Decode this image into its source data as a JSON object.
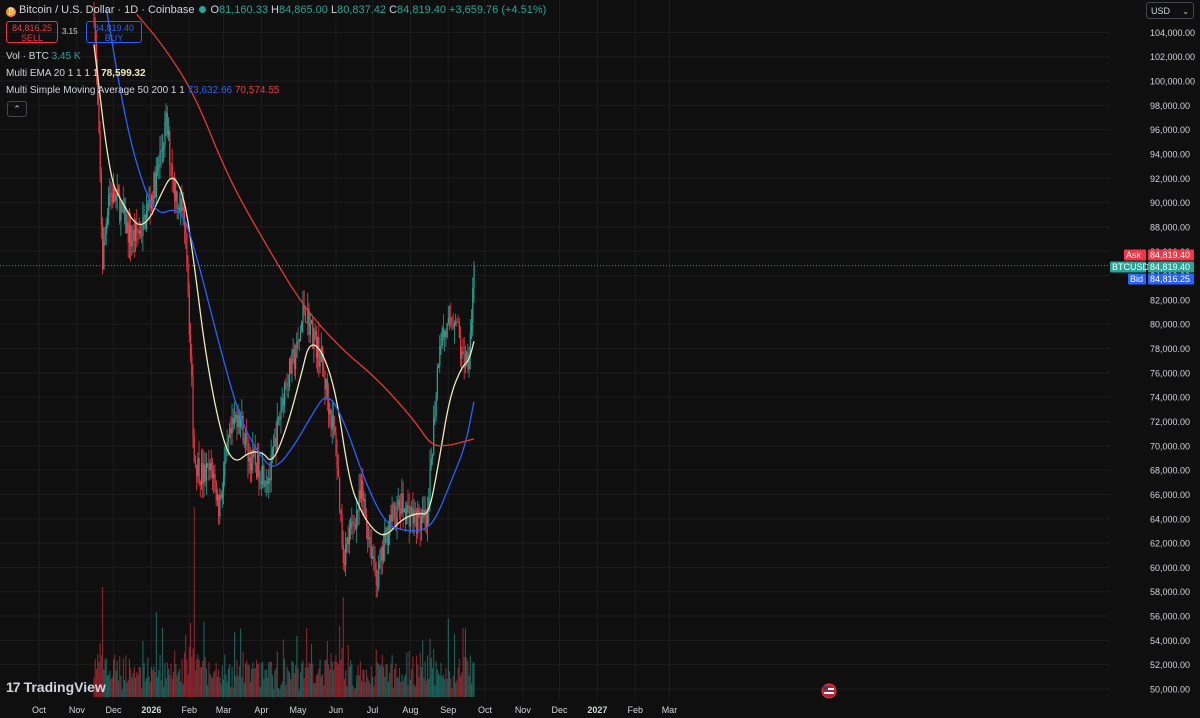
{
  "header": {
    "symbol_title": "Bitcoin / U.S. Dollar · 1D · Coinbase",
    "open_label": "O",
    "open": "81,160.33",
    "high_label": "H",
    "high": "84,865.00",
    "low_label": "L",
    "low": "80,837.42",
    "close_label": "C",
    "close": "84,819.40",
    "change": "+3,659.76 (+4.51%)"
  },
  "trade": {
    "sell_price": "84,816.25",
    "sell_label": "SELL",
    "spread": "3.15",
    "buy_price": "84,819.40",
    "buy_label": "BUY"
  },
  "indicators": {
    "vol_label": "Vol · BTC",
    "vol_value": "3.45 K",
    "ema_label": "Multi EMA 20 1 1 1 1",
    "ema_value": "78,599.32",
    "sma_label": "Multi Simple Moving Average 50 200 1 1",
    "sma50_value": "73,632.66",
    "sma200_value": "70,574.55",
    "collapse_icon": "chevron-up-icon"
  },
  "currency": {
    "label": "USD",
    "icon": "chevron-down-icon"
  },
  "branding": {
    "logo_text": "TradingView",
    "logo_icon": "tradingview-logo-icon"
  },
  "price_tags": {
    "ask_label": "Ask",
    "ask_value": "84,819.40",
    "last_label": "BTCUSD",
    "last_value": "84,819.40",
    "bid_label": "Bid",
    "bid_value": "84,816.25"
  },
  "colors": {
    "background": "#0f0f0f",
    "up": "#26a69a",
    "down": "#f23645",
    "ema20": "#f3e9b5",
    "sma50": "#2962ff",
    "sma200": "#e53935",
    "ask": "#f23645",
    "bid": "#2962ff",
    "last": "#26a69a",
    "axis_text": "#d1d4dc"
  },
  "chart_data": {
    "type": "candlestick",
    "title": "Bitcoin / U.S. Dollar · 1D · Coinbase",
    "ylim": [
      49500,
      105500
    ],
    "y_ticks": [
      50000,
      52000,
      54000,
      56000,
      58000,
      60000,
      62000,
      64000,
      66000,
      68000,
      70000,
      72000,
      74000,
      76000,
      78000,
      80000,
      82000,
      84000,
      86000,
      88000,
      90000,
      92000,
      94000,
      96000,
      98000,
      100000,
      102000,
      104000
    ],
    "y_tick_labels": [
      "50,000.00",
      "52,000.00",
      "54,000.00",
      "56,000.00",
      "58,000.00",
      "60,000.00",
      "62,000.00",
      "64,000.00",
      "66,000.00",
      "68,000.00",
      "70,000.00",
      "72,000.00",
      "74,000.00",
      "76,000.00",
      "78,000.00",
      "80,000.00",
      "82,000.00",
      "84,000.00",
      "86,000.00",
      "88,000.00",
      "90,000.00",
      "92,000.00",
      "94,000.00",
      "96,000.00",
      "98,000.00",
      "100,000.00",
      "102,000.00",
      "104,000.00"
    ],
    "x_ticks": [
      "Oct",
      "Nov",
      "Dec",
      "2026",
      "Feb",
      "Mar",
      "Apr",
      "May",
      "Jun",
      "Jul",
      "Aug",
      "Sep",
      "Oct",
      "Nov",
      "Dec",
      "2027",
      "Feb",
      "Mar"
    ],
    "price_path": [
      [
        "2025-11-15",
        106000
      ],
      [
        "2025-11-20",
        92000
      ],
      [
        "2025-11-22",
        85000
      ],
      [
        "2025-11-27",
        91000
      ],
      [
        "2025-12-05",
        90000
      ],
      [
        "2025-12-15",
        87000
      ],
      [
        "2025-12-25",
        88000
      ],
      [
        "2026-01-05",
        92000
      ],
      [
        "2026-01-13",
        96500
      ],
      [
        "2026-01-20",
        91000
      ],
      [
        "2026-01-29",
        88500
      ],
      [
        "2026-02-05",
        69000
      ],
      [
        "2026-02-12",
        67500
      ],
      [
        "2026-02-20",
        68000
      ],
      [
        "2026-02-25",
        65000
      ],
      [
        "2026-03-05",
        70000
      ],
      [
        "2026-03-13",
        73000
      ],
      [
        "2026-03-22",
        69000
      ],
      [
        "2026-04-01",
        68000
      ],
      [
        "2026-04-08",
        67500
      ],
      [
        "2026-04-20",
        75000
      ],
      [
        "2026-05-01",
        78000
      ],
      [
        "2026-05-06",
        81500
      ],
      [
        "2026-05-12",
        79500
      ],
      [
        "2026-05-20",
        77000
      ],
      [
        "2026-06-01",
        70000
      ],
      [
        "2026-06-07",
        61000
      ],
      [
        "2026-06-15",
        63500
      ],
      [
        "2026-06-22",
        66000
      ],
      [
        "2026-07-01",
        61000
      ],
      [
        "2026-07-05",
        59000
      ],
      [
        "2026-07-15",
        64000
      ],
      [
        "2026-07-25",
        65000
      ],
      [
        "2026-08-05",
        64000
      ],
      [
        "2026-08-15",
        63500
      ],
      [
        "2026-08-18",
        69000
      ],
      [
        "2026-08-25",
        79000
      ],
      [
        "2026-09-01",
        79500
      ],
      [
        "2026-09-07",
        81000
      ],
      [
        "2026-09-12",
        77000
      ],
      [
        "2026-09-17",
        77500
      ],
      [
        "2026-09-20",
        80500
      ],
      [
        "2026-09-22",
        84819
      ]
    ],
    "series": [
      {
        "name": "Multi EMA 20 1 1 1 1",
        "points": [
          [
            "2025-11-15",
            103000
          ],
          [
            "2025-11-28",
            92000
          ],
          [
            "2025-12-08",
            90000
          ],
          [
            "2025-12-20",
            88000
          ],
          [
            "2025-12-30",
            88500
          ],
          [
            "2026-01-08",
            90500
          ],
          [
            "2026-01-18",
            92500
          ],
          [
            "2026-01-28",
            90500
          ],
          [
            "2026-02-05",
            85000
          ],
          [
            "2026-02-15",
            77000
          ],
          [
            "2026-02-28",
            70500
          ],
          [
            "2026-03-10",
            68500
          ],
          [
            "2026-03-22",
            69500
          ],
          [
            "2026-04-02",
            69500
          ],
          [
            "2026-04-10",
            68500
          ],
          [
            "2026-04-22",
            71500
          ],
          [
            "2026-05-04",
            76000
          ],
          [
            "2026-05-10",
            78500
          ],
          [
            "2026-05-20",
            78000
          ],
          [
            "2026-06-01",
            74500
          ],
          [
            "2026-06-12",
            67000
          ],
          [
            "2026-06-22",
            64500
          ],
          [
            "2026-07-02",
            63000
          ],
          [
            "2026-07-12",
            62500
          ],
          [
            "2026-07-25",
            64000
          ],
          [
            "2026-08-08",
            64500
          ],
          [
            "2026-08-16",
            64300
          ],
          [
            "2026-08-24",
            68500
          ],
          [
            "2026-09-02",
            74000
          ],
          [
            "2026-09-12",
            76500
          ],
          [
            "2026-09-18",
            77000
          ],
          [
            "2026-09-22",
            78599
          ]
        ]
      },
      {
        "name": "Multi Simple Moving Average 50",
        "points": [
          [
            "2025-11-25",
            106000
          ],
          [
            "2025-12-12",
            96000
          ],
          [
            "2025-12-28",
            90500
          ],
          [
            "2026-01-08",
            89000
          ],
          [
            "2026-01-18",
            89500
          ],
          [
            "2026-01-28",
            89000
          ],
          [
            "2026-02-10",
            84500
          ],
          [
            "2026-02-25",
            78500
          ],
          [
            "2026-03-15",
            72000
          ],
          [
            "2026-04-01",
            69000
          ],
          [
            "2026-04-12",
            68000
          ],
          [
            "2026-04-28",
            70000
          ],
          [
            "2026-05-12",
            72500
          ],
          [
            "2026-05-25",
            74500
          ],
          [
            "2026-06-08",
            72000
          ],
          [
            "2026-06-25",
            67000
          ],
          [
            "2026-07-12",
            63500
          ],
          [
            "2026-07-28",
            63000
          ],
          [
            "2026-08-12",
            63000
          ],
          [
            "2026-08-22",
            64000
          ],
          [
            "2026-09-05",
            67500
          ],
          [
            "2026-09-15",
            70000
          ],
          [
            "2026-09-22",
            73633
          ]
        ]
      },
      {
        "name": "Multi Simple Moving Average 200",
        "points": [
          [
            "2025-12-20",
            105500
          ],
          [
            "2026-01-10",
            103000
          ],
          [
            "2026-02-05",
            99000
          ],
          [
            "2026-03-05",
            92000
          ],
          [
            "2026-04-05",
            86500
          ],
          [
            "2026-05-05",
            81500
          ],
          [
            "2026-06-05",
            78000
          ],
          [
            "2026-07-05",
            75500
          ],
          [
            "2026-08-05",
            72000
          ],
          [
            "2026-08-18",
            70000
          ],
          [
            "2026-09-01",
            70000
          ],
          [
            "2026-09-22",
            70575
          ]
        ]
      }
    ],
    "volume_max_btc": 40000
  }
}
